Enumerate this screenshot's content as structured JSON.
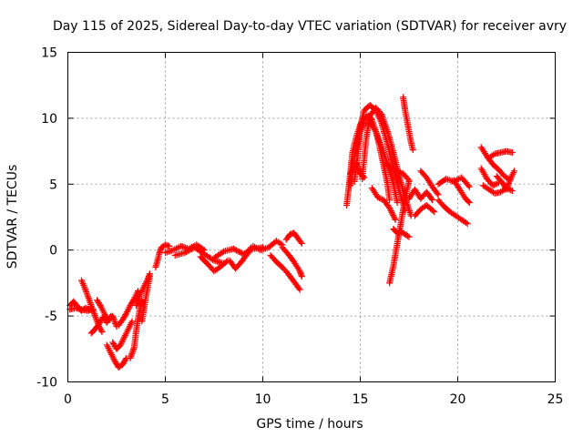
{
  "colors": {
    "series": "#ff0000",
    "grid": "#a0a0a0",
    "axis": "#000000"
  },
  "chart_data": {
    "type": "scatter",
    "title": "Day 115 of 2025, Sidereal Day-to-day VTEC variation (SDTVAR) for receiver avry",
    "xlabel": "GPS time / hours",
    "ylabel": "SDTVAR / TECUs",
    "xlim": [
      0,
      25
    ],
    "ylim": [
      -10,
      15
    ],
    "xticks": [
      0,
      5,
      10,
      15,
      20,
      25
    ],
    "yticks": [
      -10,
      -5,
      0,
      5,
      10,
      15
    ],
    "xtick_labels": [
      "0",
      "5",
      "10",
      "15",
      "20",
      "25"
    ],
    "ytick_labels": [
      "-10",
      "-5",
      "0",
      "5",
      "10",
      "15"
    ],
    "grid": true,
    "marker": "+",
    "series": [
      {
        "name": "SDTVAR",
        "segments": [
          [
            [
              0.1,
              -4.2
            ],
            [
              0.3,
              -3.9
            ],
            [
              0.5,
              -4.3
            ],
            [
              0.7,
              -4.6
            ],
            [
              0.9,
              -4.4
            ],
            [
              1.1,
              -4.5
            ]
          ],
          [
            [
              0.1,
              -4.5
            ],
            [
              0.4,
              -4.4
            ],
            [
              0.7,
              -4.5
            ],
            [
              1.0,
              -4.6
            ],
            [
              1.3,
              -4.5
            ]
          ],
          [
            [
              0.7,
              -2.3
            ],
            [
              0.85,
              -2.8
            ],
            [
              1.0,
              -3.4
            ],
            [
              1.15,
              -4.0
            ],
            [
              1.3,
              -4.6
            ],
            [
              1.45,
              -5.2
            ],
            [
              1.6,
              -5.8
            ],
            [
              1.75,
              -6.2
            ]
          ],
          [
            [
              1.2,
              -6.3
            ],
            [
              1.4,
              -6.0
            ],
            [
              1.6,
              -5.6
            ],
            [
              1.8,
              -5.1
            ],
            [
              2.0,
              -5.5
            ],
            [
              2.2,
              -5.0
            ]
          ],
          [
            [
              1.5,
              -3.8
            ],
            [
              1.7,
              -4.3
            ],
            [
              1.9,
              -4.9
            ],
            [
              2.1,
              -5.3
            ],
            [
              2.3,
              -5.0
            ],
            [
              2.5,
              -5.8
            ]
          ],
          [
            [
              2.0,
              -7.2
            ],
            [
              2.2,
              -7.8
            ],
            [
              2.4,
              -8.4
            ],
            [
              2.6,
              -8.9
            ],
            [
              2.8,
              -8.7
            ],
            [
              3.0,
              -8.2
            ]
          ],
          [
            [
              2.3,
              -7.0
            ],
            [
              2.5,
              -7.5
            ],
            [
              2.7,
              -7.2
            ],
            [
              2.9,
              -6.6
            ],
            [
              3.1,
              -6.0
            ],
            [
              3.3,
              -5.4
            ]
          ],
          [
            [
              2.6,
              -5.7
            ],
            [
              2.8,
              -5.3
            ],
            [
              3.0,
              -4.8
            ],
            [
              3.2,
              -4.2
            ],
            [
              3.4,
              -3.7
            ],
            [
              3.6,
              -3.1
            ]
          ],
          [
            [
              3.2,
              -8.2
            ],
            [
              3.4,
              -7.4
            ],
            [
              3.5,
              -6.2
            ],
            [
              3.6,
              -5.2
            ],
            [
              3.7,
              -4.4
            ],
            [
              3.8,
              -3.8
            ]
          ],
          [
            [
              3.5,
              -4.2
            ],
            [
              3.7,
              -3.4
            ],
            [
              3.9,
              -2.8
            ],
            [
              4.1,
              -2.2
            ],
            [
              4.2,
              -1.8
            ]
          ],
          [
            [
              3.8,
              -5.4
            ],
            [
              3.9,
              -4.5
            ],
            [
              4.0,
              -3.6
            ],
            [
              4.1,
              -2.8
            ],
            [
              4.2,
              -2.0
            ]
          ],
          [
            [
              4.5,
              -1.3
            ],
            [
              4.6,
              -0.8
            ],
            [
              4.7,
              -0.2
            ],
            [
              4.8,
              0.2
            ],
            [
              5.0,
              0.4
            ],
            [
              5.2,
              0.3
            ]
          ],
          [
            [
              5.0,
              -0.2
            ],
            [
              5.4,
              0.0
            ],
            [
              5.8,
              0.3
            ],
            [
              6.2,
              0.1
            ],
            [
              6.6,
              0.4
            ],
            [
              7.0,
              0.0
            ]
          ],
          [
            [
              5.5,
              -0.4
            ],
            [
              6.0,
              -0.2
            ],
            [
              6.5,
              0.2
            ],
            [
              7.0,
              -0.3
            ],
            [
              7.5,
              -0.8
            ],
            [
              8.0,
              -1.0
            ]
          ],
          [
            [
              6.8,
              -0.5
            ],
            [
              7.2,
              -1.1
            ],
            [
              7.5,
              -1.6
            ],
            [
              7.8,
              -1.3
            ],
            [
              8.2,
              -0.8
            ]
          ],
          [
            [
              7.5,
              -0.6
            ],
            [
              8.0,
              -0.1
            ],
            [
              8.5,
              0.1
            ],
            [
              9.0,
              -0.3
            ],
            [
              9.5,
              0.1
            ],
            [
              10.0,
              0.2
            ]
          ],
          [
            [
              8.3,
              -0.8
            ],
            [
              8.6,
              -1.4
            ],
            [
              8.9,
              -0.9
            ],
            [
              9.2,
              -0.3
            ],
            [
              9.4,
              0.2
            ]
          ],
          [
            [
              9.5,
              0.3
            ],
            [
              9.9,
              0.0
            ],
            [
              10.3,
              0.2
            ],
            [
              10.7,
              0.7
            ],
            [
              11.0,
              0.4
            ]
          ],
          [
            [
              10.4,
              -0.4
            ],
            [
              10.7,
              -0.9
            ],
            [
              11.0,
              -1.3
            ],
            [
              11.3,
              -1.8
            ],
            [
              11.6,
              -2.4
            ],
            [
              11.9,
              -3.0
            ]
          ],
          [
            [
              11.0,
              0.2
            ],
            [
              11.3,
              -0.3
            ],
            [
              11.6,
              -0.9
            ],
            [
              11.9,
              -1.6
            ],
            [
              12.0,
              -2.0
            ]
          ],
          [
            [
              11.2,
              0.8
            ],
            [
              11.4,
              1.2
            ],
            [
              11.6,
              1.3
            ],
            [
              11.8,
              0.9
            ],
            [
              12.0,
              0.5
            ]
          ],
          [
            [
              14.3,
              3.4
            ],
            [
              14.4,
              4.6
            ],
            [
              14.5,
              6.0
            ],
            [
              14.6,
              7.4
            ],
            [
              14.8,
              8.6
            ],
            [
              15.0,
              9.5
            ],
            [
              15.2,
              10.0
            ],
            [
              15.4,
              10.2
            ],
            [
              15.6,
              9.9
            ],
            [
              15.8,
              9.0
            ],
            [
              16.0,
              7.8
            ],
            [
              16.2,
              6.4
            ],
            [
              16.4,
              5.0
            ],
            [
              16.5,
              3.8
            ]
          ],
          [
            [
              14.5,
              4.9
            ],
            [
              14.6,
              6.4
            ],
            [
              14.8,
              7.8
            ],
            [
              15.0,
              9.0
            ],
            [
              15.2,
              9.6
            ],
            [
              15.5,
              9.7
            ],
            [
              15.8,
              9.0
            ],
            [
              16.1,
              7.8
            ],
            [
              16.4,
              6.5
            ],
            [
              16.7,
              5.0
            ],
            [
              16.9,
              3.6
            ]
          ],
          [
            [
              14.7,
              5.2
            ],
            [
              14.9,
              7.6
            ],
            [
              15.0,
              9.4
            ],
            [
              15.2,
              10.6
            ],
            [
              15.5,
              11.0
            ],
            [
              15.8,
              10.6
            ],
            [
              16.1,
              9.6
            ],
            [
              16.4,
              8.0
            ],
            [
              16.7,
              6.2
            ],
            [
              17.0,
              4.5
            ],
            [
              17.3,
              3.0
            ]
          ],
          [
            [
              15.1,
              5.4
            ],
            [
              15.3,
              8.4
            ],
            [
              15.5,
              10.2
            ],
            [
              15.8,
              10.8
            ],
            [
              16.1,
              10.3
            ],
            [
              16.4,
              9.0
            ],
            [
              16.7,
              7.4
            ],
            [
              17.0,
              5.6
            ],
            [
              17.3,
              4.0
            ],
            [
              17.6,
              2.6
            ]
          ],
          [
            [
              14.5,
              5.8
            ],
            [
              14.8,
              6.6
            ],
            [
              15.0,
              5.8
            ],
            [
              15.2,
              5.5
            ]
          ],
          [
            [
              16.3,
              6.6
            ],
            [
              16.6,
              6.2
            ],
            [
              16.9,
              6.0
            ],
            [
              17.2,
              5.8
            ],
            [
              17.5,
              5.3
            ]
          ],
          [
            [
              15.6,
              4.7
            ],
            [
              15.9,
              4.0
            ],
            [
              16.2,
              3.8
            ],
            [
              16.5,
              3.2
            ],
            [
              16.8,
              2.3
            ]
          ],
          [
            [
              16.5,
              -2.5
            ],
            [
              16.7,
              -1.2
            ],
            [
              16.9,
              0.5
            ],
            [
              17.1,
              2.2
            ],
            [
              17.3,
              3.9
            ],
            [
              17.5,
              5.2
            ]
          ],
          [
            [
              16.7,
              1.6
            ],
            [
              16.9,
              1.3
            ],
            [
              17.1,
              1.4
            ],
            [
              17.3,
              1.2
            ],
            [
              17.5,
              1.0
            ]
          ],
          [
            [
              17.2,
              11.6
            ],
            [
              17.3,
              10.6
            ],
            [
              17.4,
              9.8
            ],
            [
              17.5,
              9.0
            ],
            [
              17.6,
              8.2
            ],
            [
              17.7,
              7.6
            ]
          ],
          [
            [
              17.5,
              3.9
            ],
            [
              17.8,
              4.6
            ],
            [
              18.1,
              3.9
            ],
            [
              18.4,
              4.4
            ],
            [
              18.7,
              3.8
            ]
          ],
          [
            [
              17.8,
              2.6
            ],
            [
              18.1,
              3.1
            ],
            [
              18.4,
              3.4
            ],
            [
              18.8,
              2.9
            ]
          ],
          [
            [
              18.1,
              6.0
            ],
            [
              18.4,
              5.5
            ],
            [
              18.7,
              4.8
            ],
            [
              19.0,
              4.2
            ]
          ],
          [
            [
              19.0,
              3.8
            ],
            [
              19.3,
              3.3
            ],
            [
              19.6,
              2.9
            ],
            [
              19.9,
              2.6
            ],
            [
              20.2,
              2.3
            ],
            [
              20.5,
              2.0
            ]
          ],
          [
            [
              19.0,
              5.0
            ],
            [
              19.4,
              5.4
            ],
            [
              19.8,
              5.2
            ],
            [
              20.2,
              5.5
            ],
            [
              20.6,
              4.8
            ]
          ],
          [
            [
              19.8,
              5.3
            ],
            [
              20.1,
              4.6
            ],
            [
              20.4,
              3.9
            ],
            [
              20.6,
              3.6
            ]
          ],
          [
            [
              21.2,
              7.8
            ],
            [
              21.5,
              7.1
            ],
            [
              21.8,
              6.5
            ],
            [
              22.1,
              6.1
            ],
            [
              22.4,
              5.6
            ],
            [
              22.7,
              5.3
            ]
          ],
          [
            [
              21.2,
              6.2
            ],
            [
              21.5,
              5.4
            ],
            [
              21.8,
              4.9
            ],
            [
              22.1,
              5.1
            ]
          ],
          [
            [
              21.6,
              7.0
            ],
            [
              21.9,
              7.3
            ],
            [
              22.2,
              7.4
            ],
            [
              22.5,
              7.5
            ],
            [
              22.8,
              7.4
            ]
          ],
          [
            [
              21.3,
              4.9
            ],
            [
              21.6,
              4.6
            ],
            [
              21.9,
              4.3
            ],
            [
              22.2,
              4.4
            ],
            [
              22.5,
              4.7
            ],
            [
              22.8,
              4.5
            ]
          ],
          [
            [
              22.0,
              5.6
            ],
            [
              22.3,
              5.1
            ],
            [
              22.5,
              4.6
            ],
            [
              22.7,
              5.4
            ],
            [
              22.9,
              6.0
            ]
          ]
        ]
      }
    ]
  }
}
